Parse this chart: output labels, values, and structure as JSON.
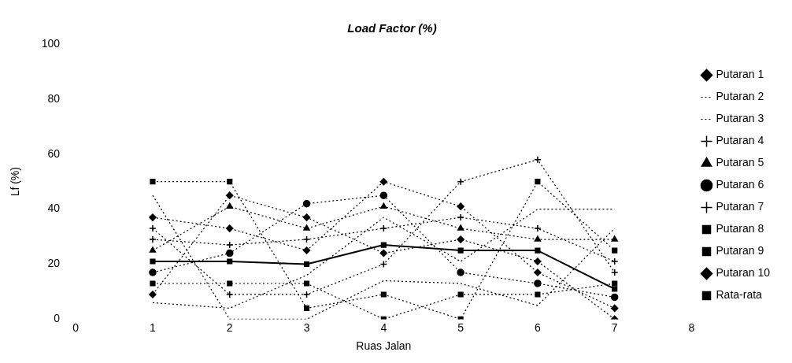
{
  "chart_data": {
    "type": "line",
    "title": "Load Factor (%)",
    "xlabel": "Ruas Jalan",
    "ylabel": "Lf (%)",
    "x": [
      1,
      2,
      3,
      4,
      5,
      6,
      7
    ],
    "xlim": [
      0,
      8
    ],
    "xticks": [
      0,
      1,
      2,
      3,
      4,
      5,
      6,
      7,
      8
    ],
    "ylim": [
      0,
      100
    ],
    "yticks": [
      0,
      20,
      40,
      60,
      80,
      100
    ],
    "grid": false,
    "legend": "right",
    "series": [
      {
        "name": "Putaran 1",
        "color": "#000000",
        "values": [
          37,
          33,
          25,
          50,
          41,
          17,
          4
        ],
        "marker": "diamond",
        "line_style": "dotted"
      },
      {
        "name": "Putaran 2",
        "color": "#000000",
        "values": [
          45,
          0,
          0,
          14,
          13,
          5,
          33
        ],
        "marker": "none",
        "line_style": "dotted"
      },
      {
        "name": "Putaran 3",
        "color": "#000000",
        "values": [
          6,
          4,
          16,
          37,
          21,
          40,
          40
        ],
        "marker": "none",
        "line_style": "dotted"
      },
      {
        "name": "Putaran 4",
        "color": "#000000",
        "values": [
          33,
          9,
          9,
          20,
          50,
          58,
          17
        ],
        "marker": "cross",
        "line_style": "dotted"
      },
      {
        "name": "Putaran 5",
        "color": "#000000",
        "values": [
          25,
          41,
          33,
          41,
          33,
          29,
          29
        ],
        "marker": "triangle",
        "line_style": "dotted"
      },
      {
        "name": "Putaran 6",
        "color": "#000000",
        "values": [
          17,
          24,
          42,
          45,
          17,
          13,
          8
        ],
        "marker": "circle",
        "line_style": "dotted"
      },
      {
        "name": "Putaran 7",
        "color": "#000000",
        "values": [
          29,
          27,
          29,
          33,
          37,
          33,
          21
        ],
        "marker": "cross",
        "line_style": "dotted"
      },
      {
        "name": "Putaran 8",
        "color": "#000000",
        "values": [
          13,
          13,
          13,
          0,
          9,
          9,
          13
        ],
        "marker": "square",
        "line_style": "dotted"
      },
      {
        "name": "Putaran 9",
        "color": "#000000",
        "values": [
          50,
          50,
          4,
          9,
          0,
          50,
          25
        ],
        "marker": "square",
        "line_style": "dotted"
      },
      {
        "name": "Putaran 10",
        "color": "#000000",
        "values": [
          9,
          45,
          37,
          24,
          29,
          21,
          0
        ],
        "marker": "diamond",
        "line_style": "dotted"
      },
      {
        "name": "Rata-rata",
        "color": "#000000",
        "values": [
          21,
          21,
          20,
          27,
          25,
          25,
          11
        ],
        "marker": "square",
        "line_style": "solid"
      }
    ]
  }
}
